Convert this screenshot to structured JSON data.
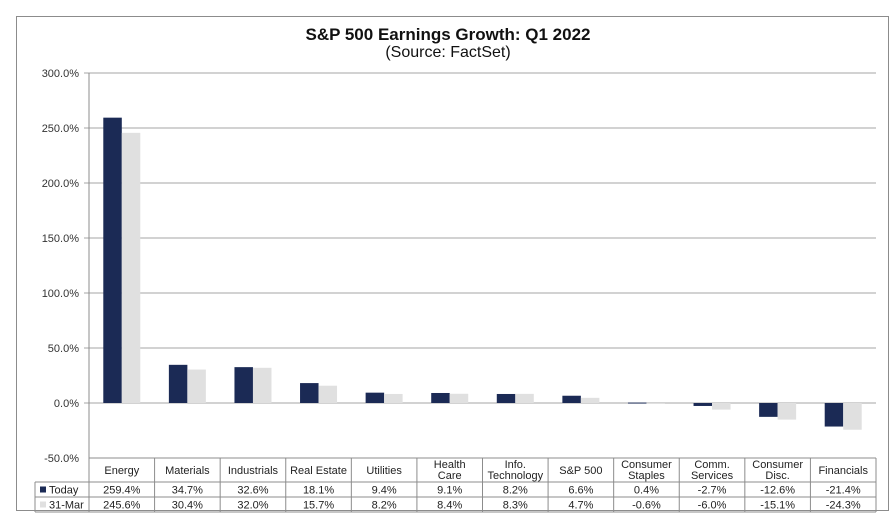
{
  "chart_data": {
    "type": "bar",
    "title": "S&P 500 Earnings Growth: Q1 2022",
    "subtitle": "(Source: FactSet)",
    "xlabel": "",
    "ylabel": "",
    "ylim": [
      -50,
      300
    ],
    "yticks": [
      300,
      250,
      200,
      150,
      100,
      50,
      0,
      -50
    ],
    "ytick_labels": [
      "300.0%",
      "250.0%",
      "200.0%",
      "150.0%",
      "100.0%",
      "50.0%",
      "0.0%",
      "-50.0%"
    ],
    "grid": true,
    "legend_placement": "data-table-left",
    "categories": [
      [
        "Energy"
      ],
      [
        "Materials"
      ],
      [
        "Industrials"
      ],
      [
        "Real Estate"
      ],
      [
        "Utilities"
      ],
      [
        "Health",
        "Care"
      ],
      [
        "Info.",
        "Technology"
      ],
      [
        "S&P 500"
      ],
      [
        "Consumer",
        "Staples"
      ],
      [
        "Comm.",
        "Services"
      ],
      [
        "Consumer",
        "Disc."
      ],
      [
        "Financials"
      ]
    ],
    "series": [
      {
        "name": "Today",
        "color": "#1b2a55",
        "values": [
          259.4,
          34.7,
          32.6,
          18.1,
          9.4,
          9.1,
          8.2,
          6.6,
          0.4,
          -2.7,
          -12.6,
          -21.4
        ],
        "labels": [
          "259.4%",
          "34.7%",
          "32.6%",
          "18.1%",
          "9.4%",
          "9.1%",
          "8.2%",
          "6.6%",
          "0.4%",
          "-2.7%",
          "-12.6%",
          "-21.4%"
        ]
      },
      {
        "name": "31-Mar",
        "color": "#e0e0e0",
        "values": [
          245.6,
          30.4,
          32.0,
          15.7,
          8.2,
          8.4,
          8.3,
          4.7,
          -0.6,
          -6.0,
          -15.1,
          -24.3
        ],
        "labels": [
          "245.6%",
          "30.4%",
          "32.0%",
          "15.7%",
          "8.2%",
          "8.4%",
          "8.3%",
          "4.7%",
          "-0.6%",
          "-6.0%",
          "-15.1%",
          "-24.3%"
        ]
      }
    ]
  }
}
